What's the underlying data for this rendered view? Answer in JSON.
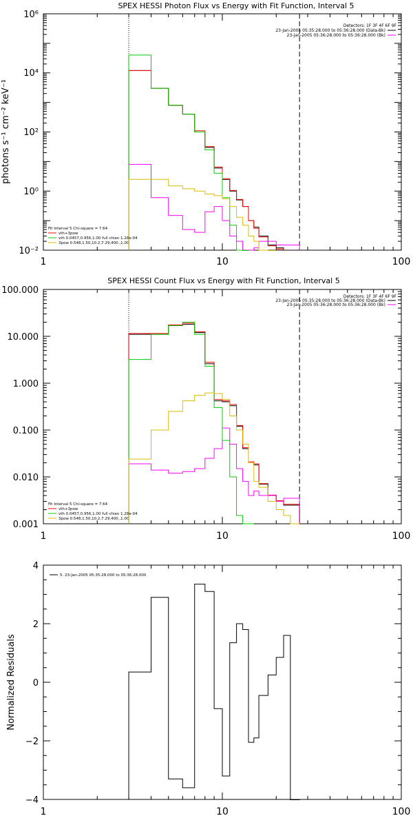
{
  "chart_data": [
    {
      "type": "line",
      "title": "SPEX HESSI Photon Flux vs Energy with Fit Function, Interval 5",
      "xlabel": "",
      "ylabel": "photons s⁻¹ cm⁻² keV⁻¹",
      "xscale": "log",
      "yscale": "log",
      "xlim": [
        1,
        100
      ],
      "ylim": [
        0.01,
        1000000
      ],
      "x_tick_labels": [
        "1",
        "10",
        "100"
      ],
      "y_tick_labels": [
        "10⁻²",
        "10⁰",
        "10²",
        "10⁴",
        "10⁶"
      ],
      "vlines": [
        {
          "x": 3,
          "style": "dotted"
        },
        {
          "x": 27,
          "style": "dashed"
        }
      ],
      "legend_top": [
        "Detectors: 1F 3F 4F 6F 9F",
        "23-Jan-2005 05:35:28.000 to 05:36:28.000 (Data-Bk)",
        "23-Jan-2005 05:36:28.000 to 05:36:28.000 (Bk)"
      ],
      "legend_bottom": [
        "Fit Interval  5   Chi-square = 7.64",
        "vth+3pow",
        "vth 0.0457,0.956,1.00  full chian 1.28e-04",
        "3pow 0.548,1.50,10.2,7.29,400.,1.00"
      ],
      "bin_edges": [
        3,
        4,
        5,
        6,
        7,
        8,
        9,
        10,
        11,
        12,
        13,
        14,
        15,
        16,
        18,
        20,
        22,
        24,
        27
      ],
      "series": [
        {
          "color": "#000000",
          "values": [
            12000,
            3000,
            800,
            400,
            100,
            30,
            6,
            2.5,
            1,
            0.5,
            0.3,
            0.1,
            0.06,
            0.03,
            0.015,
            0.012
          ]
        },
        {
          "color": "#ff0000",
          "values": [
            12000,
            3000,
            800,
            400,
            110,
            32,
            6.5,
            2.6,
            1.05,
            0.52,
            0.3,
            0.1,
            0.055,
            0.028,
            0.014,
            0.011
          ]
        },
        {
          "color": "#ff00ff",
          "values": [
            8,
            0.6,
            0.15,
            0.05,
            0.04,
            0.2,
            0.3,
            0.1,
            0.03,
            0.02,
            0.01,
            0.01,
            0.012,
            0.02,
            0.02,
            0.015,
            0.015,
            0.015
          ]
        },
        {
          "color": "#00cc00",
          "values": [
            40000,
            3000,
            800,
            400,
            100,
            25,
            4,
            0.6,
            0.07,
            0.01,
            0.001
          ]
        },
        {
          "color": "#ddbb00",
          "values": [
            2.5,
            2.5,
            1.5,
            1.2,
            1.0,
            0.8,
            0.7,
            0.55,
            0.3,
            0.13,
            0.07,
            0.03,
            0.02,
            0.01,
            0.006
          ]
        }
      ]
    },
    {
      "type": "line",
      "title": "SPEX HESSI Count Flux vs Energy with Fit Function, Interval 5",
      "xlabel": "",
      "ylabel": "",
      "xscale": "log",
      "yscale": "log",
      "xlim": [
        1,
        100
      ],
      "ylim": [
        0.001,
        100
      ],
      "x_tick_labels": [
        "1",
        "10",
        "100"
      ],
      "y_tick_labels": [
        "0.001",
        "0.010",
        "0.100",
        "1.000",
        "10.000",
        "100.000"
      ],
      "vlines": [
        {
          "x": 3,
          "style": "dotted"
        },
        {
          "x": 27,
          "style": "dashed"
        }
      ],
      "legend_top": [
        "Detectors: 1F 3F 4F 6F 9F",
        "23-Jan-2005 05:35:28.000 to 05:36:28.000 (Data-Bk)",
        "23-Jan-2005 05:36:28.000 to 05:36:28.000 (Bk)"
      ],
      "legend_bottom": [
        "Fit Interval  5   Chi-square = 7.64",
        "vth+3pow",
        "vth 0.0457,0.956,1.00  full chian 1.28e-04",
        "3pow 0.548,1.50,10.2,7.29,400.,1.00"
      ],
      "bin_edges": [
        3,
        4,
        5,
        6,
        7,
        8,
        9,
        10,
        11,
        12,
        13,
        14,
        15,
        16,
        18,
        20,
        22,
        24,
        27
      ],
      "series": [
        {
          "color": "#000000",
          "values": [
            11,
            11,
            17,
            18,
            12,
            2.6,
            0.42,
            0.4,
            0.33,
            0.12,
            0.04,
            0.02,
            0.018,
            0.007,
            0.004,
            0.003,
            0.0025,
            0.0025
          ]
        },
        {
          "color": "#ff0000",
          "values": [
            11.5,
            11.5,
            17.5,
            19,
            12.5,
            2.8,
            0.45,
            0.42,
            0.35,
            0.125,
            0.042,
            0.021,
            0.019,
            0.0072,
            0.0041,
            0.0031,
            0.0026,
            0.0026
          ]
        },
        {
          "color": "#ff00ff",
          "values": [
            0.019,
            0.014,
            0.012,
            0.013,
            0.015,
            0.025,
            0.04,
            0.11,
            0.05,
            0.015,
            0.008,
            0.004,
            0.005,
            0.004,
            0.004,
            0.003,
            0.0035,
            0.0035
          ]
        },
        {
          "color": "#00cc00",
          "values": [
            3.2,
            11,
            17,
            20,
            11,
            2.3,
            0.3,
            0.06,
            0.01,
            0.0015,
            0.001,
            0.001
          ]
        },
        {
          "color": "#ddbb00",
          "values": [
            0.024,
            0.1,
            0.25,
            0.42,
            0.55,
            0.62,
            0.6,
            0.45,
            0.2,
            0.1,
            0.05,
            0.02,
            0.008,
            0.006,
            0.003,
            0.002,
            0.0015,
            0.001
          ]
        }
      ]
    },
    {
      "type": "line",
      "title": "",
      "xlabel": "",
      "ylabel": "Normalized Residuals",
      "xscale": "log",
      "yscale": "linear",
      "xlim": [
        1,
        100
      ],
      "ylim": [
        -4,
        4
      ],
      "x_tick_labels": [
        "1",
        "10",
        "100"
      ],
      "y_tick_labels": [
        "−4",
        "−2",
        "0",
        "2",
        "4"
      ],
      "legend": [
        "5. 23-Jan-2005 05:35:28.000 to 05:36:28.000"
      ],
      "bin_edges": [
        3,
        4,
        5,
        6,
        7,
        8,
        9,
        10,
        11,
        12,
        13,
        14,
        15,
        16,
        18,
        20,
        22,
        24,
        27
      ],
      "series": [
        {
          "color": "#000000",
          "values": [
            0.35,
            2.9,
            -3.3,
            -3.6,
            3.35,
            3.1,
            -0.9,
            -3.2,
            1.35,
            2.0,
            1.8,
            -2.05,
            -1.9,
            -0.45,
            0.25,
            0.85,
            1.6,
            -4.2
          ]
        }
      ]
    }
  ]
}
